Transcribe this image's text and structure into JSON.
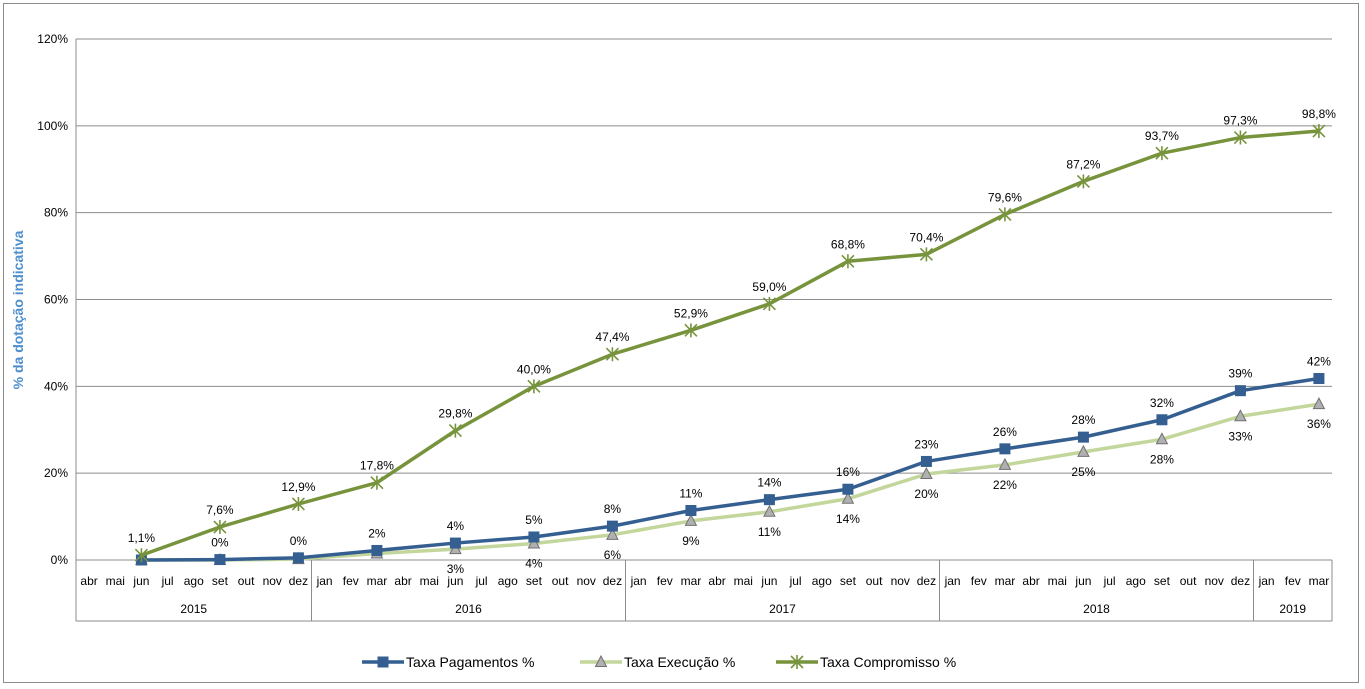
{
  "chart_data": {
    "type": "line",
    "ylabel": "% da dotação indicativa",
    "ylim": [
      0,
      120
    ],
    "yticks": [
      "0%",
      "20%",
      "40%",
      "60%",
      "80%",
      "100%",
      "120%"
    ],
    "grid": true,
    "legend_position": "bottom",
    "months": [
      "abr",
      "mai",
      "jun",
      "jul",
      "ago",
      "set",
      "out",
      "nov",
      "dez",
      "jan",
      "fev",
      "mar",
      "abr",
      "mai",
      "jun",
      "jul",
      "ago",
      "set",
      "out",
      "nov",
      "dez",
      "jan",
      "fev",
      "mar",
      "abr",
      "mai",
      "jun",
      "jul",
      "ago",
      "set",
      "out",
      "nov",
      "dez",
      "jan",
      "fev",
      "mar",
      "abr",
      "mai",
      "jun",
      "jul",
      "ago",
      "set",
      "out",
      "nov",
      "dez",
      "jan",
      "fev",
      "mar"
    ],
    "years": [
      {
        "label": "2015",
        "start": 0,
        "end": 8
      },
      {
        "label": "2016",
        "start": 9,
        "end": 20
      },
      {
        "label": "2017",
        "start": 21,
        "end": 32
      },
      {
        "label": "2018",
        "start": 33,
        "end": 44
      },
      {
        "label": "2019",
        "start": 45,
        "end": 47
      }
    ],
    "series": [
      {
        "name": "Taxa Pagamentos %",
        "color": "#355f91",
        "marker": "square",
        "label_pos": "above",
        "points": [
          {
            "i": 2,
            "y": 0,
            "label": ""
          },
          {
            "i": 5,
            "y": 0.1,
            "label": "0%"
          },
          {
            "i": 8,
            "y": 0.5,
            "label": "0%"
          },
          {
            "i": 11,
            "y": 2.2,
            "label": "2%"
          },
          {
            "i": 14,
            "y": 3.9,
            "label": "4%"
          },
          {
            "i": 17,
            "y": 5.3,
            "label": "5%"
          },
          {
            "i": 20,
            "y": 7.8,
            "label": "8%"
          },
          {
            "i": 23,
            "y": 11.4,
            "label": "11%"
          },
          {
            "i": 26,
            "y": 13.9,
            "label": "14%"
          },
          {
            "i": 29,
            "y": 16.3,
            "label": "16%"
          },
          {
            "i": 32,
            "y": 22.7,
            "label": "23%"
          },
          {
            "i": 35,
            "y": 25.6,
            "label": "26%"
          },
          {
            "i": 38,
            "y": 28.3,
            "label": "28%"
          },
          {
            "i": 41,
            "y": 32.3,
            "label": "32%"
          },
          {
            "i": 44,
            "y": 39.0,
            "label": "39%"
          },
          {
            "i": 47,
            "y": 41.8,
            "label": "42%"
          }
        ]
      },
      {
        "name": "Taxa Execução %",
        "color": "#c3d69b",
        "marker": "triangle",
        "label_pos": "below",
        "points": [
          {
            "i": 2,
            "y": 0,
            "label": ""
          },
          {
            "i": 5,
            "y": 0,
            "label": ""
          },
          {
            "i": 8,
            "y": 0.2,
            "label": ""
          },
          {
            "i": 11,
            "y": 1.5,
            "label": ""
          },
          {
            "i": 14,
            "y": 2.5,
            "label": "3%"
          },
          {
            "i": 17,
            "y": 3.8,
            "label": "4%"
          },
          {
            "i": 20,
            "y": 5.8,
            "label": "6%"
          },
          {
            "i": 23,
            "y": 9.0,
            "label": "9%"
          },
          {
            "i": 26,
            "y": 11.1,
            "label": "11%"
          },
          {
            "i": 29,
            "y": 14.1,
            "label": "14%"
          },
          {
            "i": 32,
            "y": 19.8,
            "label": "20%"
          },
          {
            "i": 35,
            "y": 21.9,
            "label": "22%"
          },
          {
            "i": 38,
            "y": 24.9,
            "label": "25%"
          },
          {
            "i": 41,
            "y": 27.8,
            "label": "28%"
          },
          {
            "i": 44,
            "y": 33.1,
            "label": "33%"
          },
          {
            "i": 47,
            "y": 35.9,
            "label": "36%"
          }
        ]
      },
      {
        "name": "Taxa Compromisso %",
        "color": "#77933c",
        "marker": "star",
        "label_pos": "above",
        "points": [
          {
            "i": 2,
            "y": 1.1,
            "label": "1,1%"
          },
          {
            "i": 5,
            "y": 7.6,
            "label": "7,6%"
          },
          {
            "i": 8,
            "y": 12.9,
            "label": "12,9%"
          },
          {
            "i": 11,
            "y": 17.8,
            "label": "17,8%"
          },
          {
            "i": 14,
            "y": 29.8,
            "label": "29,8%"
          },
          {
            "i": 17,
            "y": 40.0,
            "label": "40,0%"
          },
          {
            "i": 20,
            "y": 47.4,
            "label": "47,4%"
          },
          {
            "i": 23,
            "y": 52.9,
            "label": "52,9%"
          },
          {
            "i": 26,
            "y": 59.0,
            "label": "59,0%"
          },
          {
            "i": 29,
            "y": 68.8,
            "label": "68,8%"
          },
          {
            "i": 32,
            "y": 70.4,
            "label": "70,4%"
          },
          {
            "i": 35,
            "y": 79.6,
            "label": "79,6%"
          },
          {
            "i": 38,
            "y": 87.2,
            "label": "87,2%"
          },
          {
            "i": 41,
            "y": 93.7,
            "label": "93,7%"
          },
          {
            "i": 44,
            "y": 97.3,
            "label": "97,3%"
          },
          {
            "i": 47,
            "y": 98.8,
            "label": "98,8%"
          }
        ]
      }
    ]
  }
}
